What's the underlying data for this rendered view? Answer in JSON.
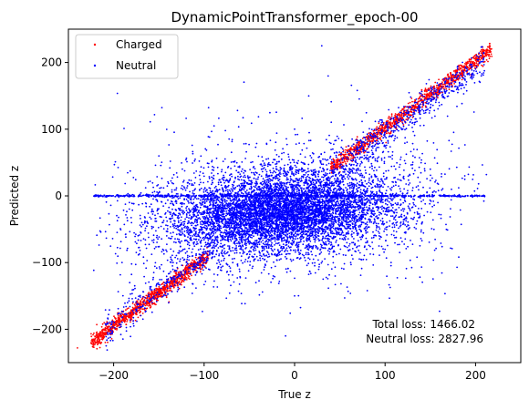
{
  "chart_data": {
    "type": "scatter",
    "title": "DynamicPointTransformer_epoch-00",
    "xlabel": "True z",
    "ylabel": "Predicted z",
    "xlim": [
      -250,
      250
    ],
    "ylim": [
      -250,
      250
    ],
    "xticks": [
      -200,
      -100,
      0,
      100,
      200
    ],
    "yticks": [
      -200,
      -100,
      0,
      100,
      200
    ],
    "xtick_labels": [
      "−200",
      "−100",
      "0",
      "100",
      "200"
    ],
    "ytick_labels": [
      "−200",
      "−100",
      "0",
      "100",
      "200"
    ],
    "grid": false,
    "legend": {
      "placement": "upper-left",
      "entries": [
        "Charged",
        "Neutral"
      ]
    },
    "series": [
      {
        "name": "Charged",
        "color": "#ff0000",
        "description_points": [
          {
            "x": -240,
            "y": -228
          },
          {
            "x": -210,
            "y": -205
          },
          {
            "x": -200,
            "y": -195
          },
          {
            "x": -180,
            "y": -175
          },
          {
            "x": -150,
            "y": -140
          },
          {
            "x": -120,
            "y": -105
          },
          {
            "x": 60,
            "y": 75
          },
          {
            "x": 100,
            "y": 105
          },
          {
            "x": 140,
            "y": 145
          },
          {
            "x": 180,
            "y": 185
          },
          {
            "x": 200,
            "y": 205
          },
          {
            "x": 215,
            "y": 212
          }
        ]
      },
      {
        "name": "Neutral",
        "color": "#0000ff",
        "description_points": [
          {
            "x": -220,
            "y": 0
          },
          {
            "x": -150,
            "y": 60
          },
          {
            "x": -100,
            "y": -100
          },
          {
            "x": 0,
            "y": 100
          },
          {
            "x": 0,
            "y": -150
          },
          {
            "x": 100,
            "y": -80
          },
          {
            "x": 150,
            "y": 40
          },
          {
            "x": 210,
            "y": 0
          },
          {
            "x": 30,
            "y": 225
          },
          {
            "x": -10,
            "y": -210
          }
        ]
      }
    ],
    "annotations": [
      {
        "text": "Total loss: 1466.02"
      },
      {
        "text": "Neutral loss: 2827.96"
      }
    ]
  }
}
